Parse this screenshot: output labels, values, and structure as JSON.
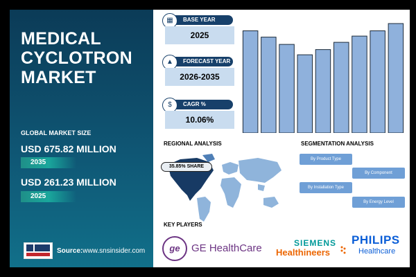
{
  "title": {
    "line1": "MEDICAL",
    "line2": "CYCLOTRON",
    "line3": "MARKET"
  },
  "global_market_size_label": "GLOBAL MARKET SIZE",
  "forecast_value": "USD 675.82 MILLION",
  "forecast_year": "2035",
  "base_value": "USD 261.23 MILLION",
  "base_year_value": "2025",
  "source": {
    "prefix": "Source:",
    "url": "www.snsinsider.com"
  },
  "info_boxes": [
    {
      "label": "BASE YEAR",
      "value": "2025",
      "icon": "calendar-icon"
    },
    {
      "label": "FORECAST YEAR",
      "value": "2026-2035",
      "icon": "chart-icon"
    },
    {
      "label": "CAGR %",
      "value": "10.06%",
      "icon": "coins-icon"
    }
  ],
  "chart_data": {
    "type": "bar",
    "values": [
      98,
      92,
      85,
      75,
      80,
      87,
      93,
      98,
      105
    ],
    "color": "#8fb1dc",
    "stroke": "#1d2b3a",
    "ylim": [
      0,
      105
    ]
  },
  "regional_label": "REGIONAL ANALYSIS",
  "share_text": "35.85% SHARE",
  "segmentation_label": "SEGMENTATION ANALYSIS",
  "segments": [
    "By Product Type",
    "By Component",
    "By Installation Type",
    "By Energy Level"
  ],
  "key_players_label": "KEY PLAYERS",
  "players": {
    "ge_mark": "ge",
    "ge": "GE HealthCare",
    "siemens_top": "SIEMENS",
    "siemens_bottom": "Healthineers",
    "philips_top": "PHILIPS",
    "philips_bottom": "Healthcare"
  },
  "colors": {
    "panel": "#0f5674",
    "accent": "#17406a",
    "box": "#c9dcef",
    "segment": "#6f9fd6"
  }
}
